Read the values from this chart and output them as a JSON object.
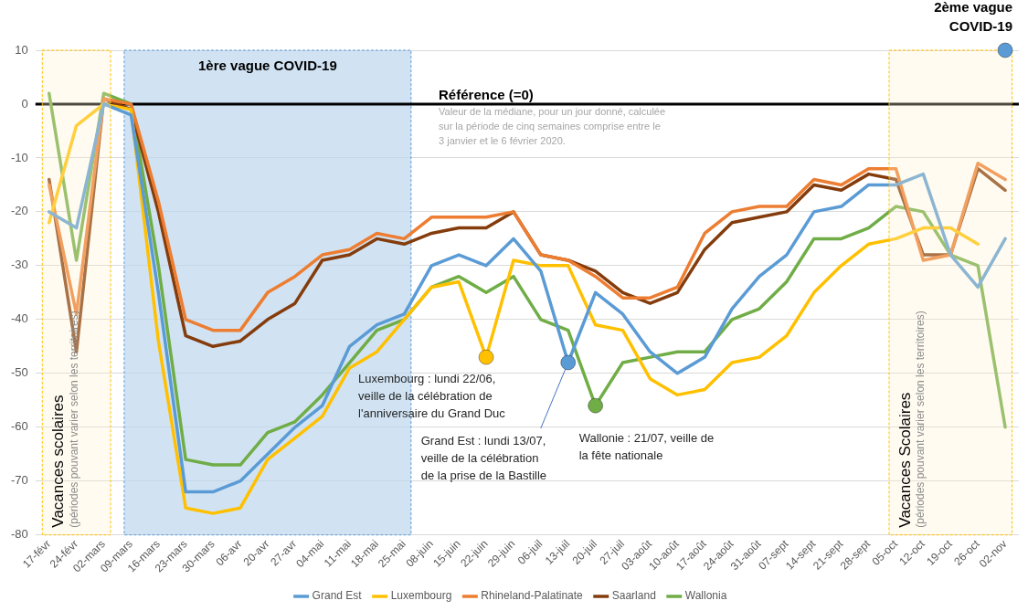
{
  "chart_data": {
    "type": "line",
    "categories": [
      "17-févr",
      "24-févr",
      "02-mars",
      "09-mars",
      "16-mars",
      "23-mars",
      "30-mars",
      "06-avr",
      "20-avr",
      "27-avr",
      "04-mai",
      "11-mai",
      "18-mai",
      "25-mai",
      "08-juin",
      "15-juin",
      "22-juin",
      "29-juin",
      "06-juil",
      "13-juil",
      "20-juil",
      "27-juil",
      "03-août",
      "10-août",
      "17-août",
      "24-août",
      "31-août",
      "07-sept",
      "14-sept",
      "21-sept",
      "28-sept",
      "05-oct",
      "12-oct",
      "19-oct",
      "26-oct",
      "02-nov"
    ],
    "series": [
      {
        "name": "Grand Est",
        "color": "#5b9bd5",
        "values": [
          -20,
          -23,
          0,
          -2,
          -35,
          -72,
          -72,
          -70,
          -65,
          -60,
          -56,
          -45,
          -41,
          -39,
          -30,
          -28,
          -30,
          -25,
          -31,
          -48,
          -35,
          -39,
          -46,
          -50,
          -47,
          -38,
          -32,
          -28,
          -20,
          -19,
          -15,
          -15,
          -13,
          -28,
          -34,
          -25
        ]
      },
      {
        "name": "Luxembourg",
        "color": "#ffc000",
        "values": [
          -22,
          -4,
          0,
          -1,
          -44,
          -75,
          -76,
          -75,
          -66,
          -62,
          -58,
          -49,
          -46,
          -40,
          -34,
          -33,
          -47,
          -29,
          -30,
          -30,
          -41,
          -42,
          -51,
          -54,
          -53,
          -48,
          -47,
          -43,
          -35,
          -30,
          -26,
          -25,
          -23,
          -23,
          -26,
          null
        ]
      },
      {
        "name": "Rhineland-Palatinate",
        "color": "#ed7d31",
        "values": [
          -15,
          -39,
          1,
          0,
          -18,
          -40,
          -42,
          -42,
          -35,
          -32,
          -28,
          -27,
          -24,
          -25,
          -21,
          -21,
          -21,
          -20,
          -28,
          -29,
          -32,
          -36,
          -36,
          -34,
          -24,
          -20,
          -19,
          -19,
          -14,
          -15,
          -12,
          -12,
          -29,
          -28,
          -11,
          -14
        ]
      },
      {
        "name": "Saarland",
        "color": "#843c0c",
        "values": [
          -14,
          -46,
          1,
          -1,
          -20,
          -43,
          -45,
          -44,
          -40,
          -37,
          -29,
          -28,
          -25,
          -26,
          -24,
          -23,
          -23,
          -20,
          -28,
          -29,
          -31,
          -35,
          -37,
          -35,
          -27,
          -22,
          -21,
          -20,
          -15,
          -16,
          -13,
          -14,
          -28,
          -28,
          -12,
          -16
        ]
      },
      {
        "name": "Wallonia",
        "color": "#70ad47",
        "values": [
          2,
          -29,
          2,
          0,
          -30,
          -66,
          -67,
          -67,
          -61,
          -59,
          -54,
          -48,
          -42,
          -40,
          -34,
          -32,
          -35,
          -32,
          -40,
          -42,
          -56,
          -48,
          -47,
          -46,
          -46,
          -40,
          -38,
          -33,
          -25,
          -25,
          -23,
          -19,
          -20,
          -28,
          -30,
          -60
        ]
      }
    ],
    "ylim": [
      -80,
      10
    ],
    "yticks": [
      -80,
      -70,
      -60,
      -50,
      -40,
      -30,
      -20,
      -10,
      0,
      10
    ],
    "grid": "y",
    "legend": "bottom",
    "marker": "none",
    "line_style": "solid",
    "ref_lines": [
      {
        "axis": "y",
        "value": 0,
        "label": "Référence (=0)",
        "color": "#000000"
      }
    ],
    "bands": [
      {
        "axis": "x",
        "from": "17-févr",
        "to": "02-mars",
        "label": "Vacances scolaires\n(périodes pouvant varier selon les territoires)",
        "color": "#fff2cc"
      },
      {
        "axis": "x",
        "from": "09-mars",
        "to": "25-mai",
        "label": "1ère vague COVID-19",
        "color": "#bdd7ee"
      },
      {
        "axis": "x",
        "from": "05-oct",
        "to": "02-nov",
        "label": "Vacances Scolaires\n(périodes pouvant varier selon les territoires)",
        "color": "#fff2cc"
      }
    ],
    "annotations": [
      "Valeur de la médiane, pour un jour donné, calculée sur la période de cinq semaines comprise entre le 3 janvier et le 6 février 2020.",
      {
        "text": "Luxembourg : lundi 22/06, veille de la célébration de l'anniversaire du Grand Duc",
        "x": "22-juin",
        "y": -47
      },
      {
        "text": "Grand Est : lundi 13/07, veille de la célébration de la prise de la Bastille",
        "x": "13-juil",
        "y": -48
      },
      {
        "text": "Wallonie : 21/07, veille de la fête nationale",
        "x": "20-juil",
        "y": -56
      },
      {
        "text": "2ème vague COVID-19",
        "x": "02-nov",
        "y": 10
      }
    ]
  }
}
